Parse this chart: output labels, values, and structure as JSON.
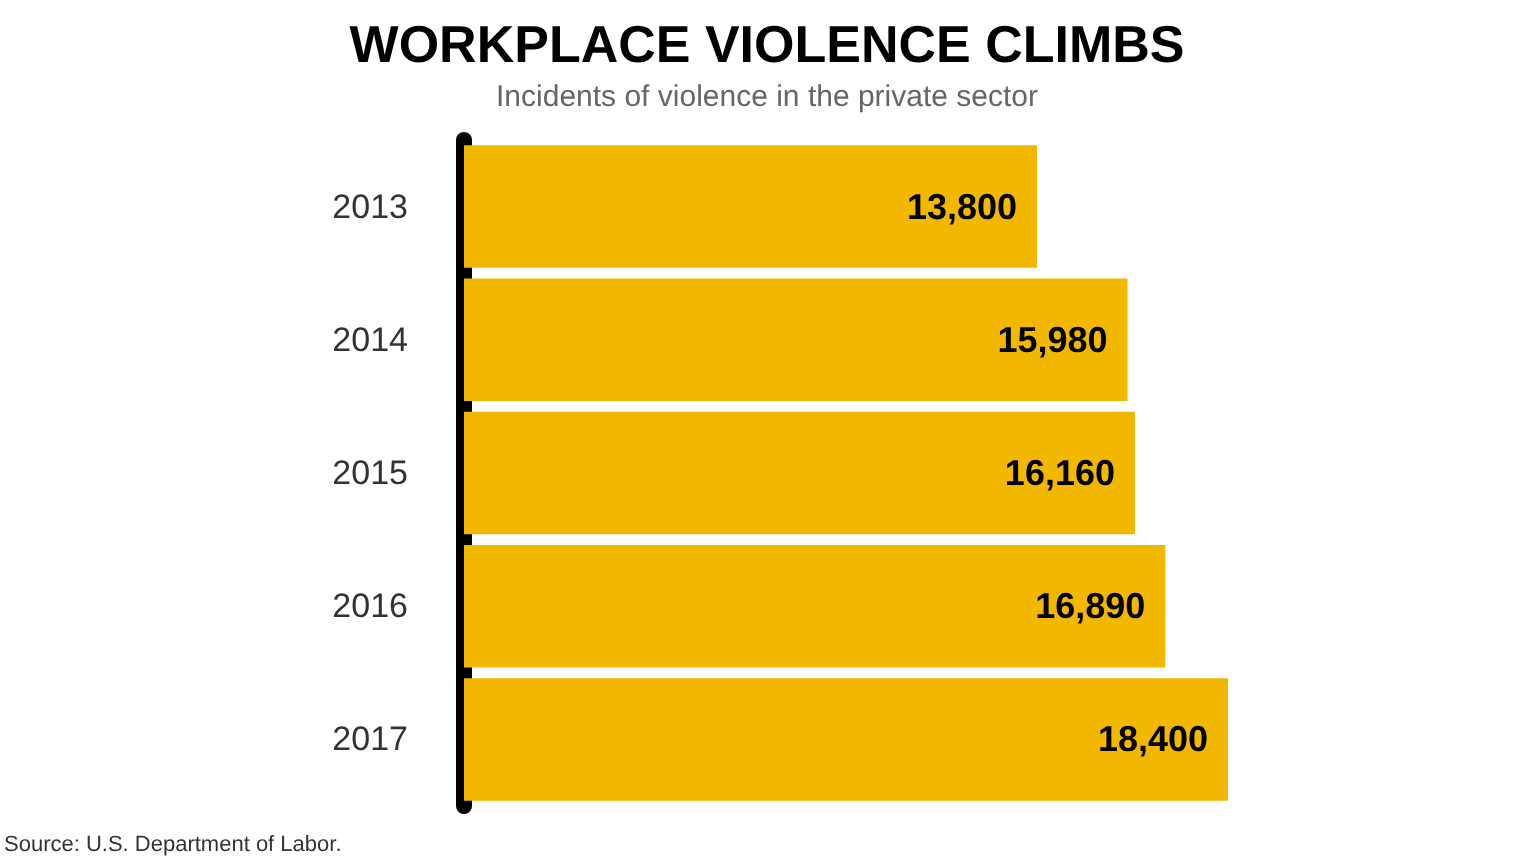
{
  "chart_data": {
    "type": "bar",
    "orientation": "horizontal",
    "title": "WORKPLACE VIOLENCE CLIMBS",
    "subtitle": "Incidents of violence in the private sector",
    "categories": [
      "2013",
      "2014",
      "2015",
      "2016",
      "2017"
    ],
    "values": [
      13800,
      15980,
      16160,
      16890,
      18400
    ],
    "color": "#f2b800",
    "value_labels": [
      "13,800",
      "15,980",
      "16,160",
      "16,890",
      "18,400"
    ],
    "annotations": [
      "Source: U.S. Department of Labor."
    ]
  }
}
